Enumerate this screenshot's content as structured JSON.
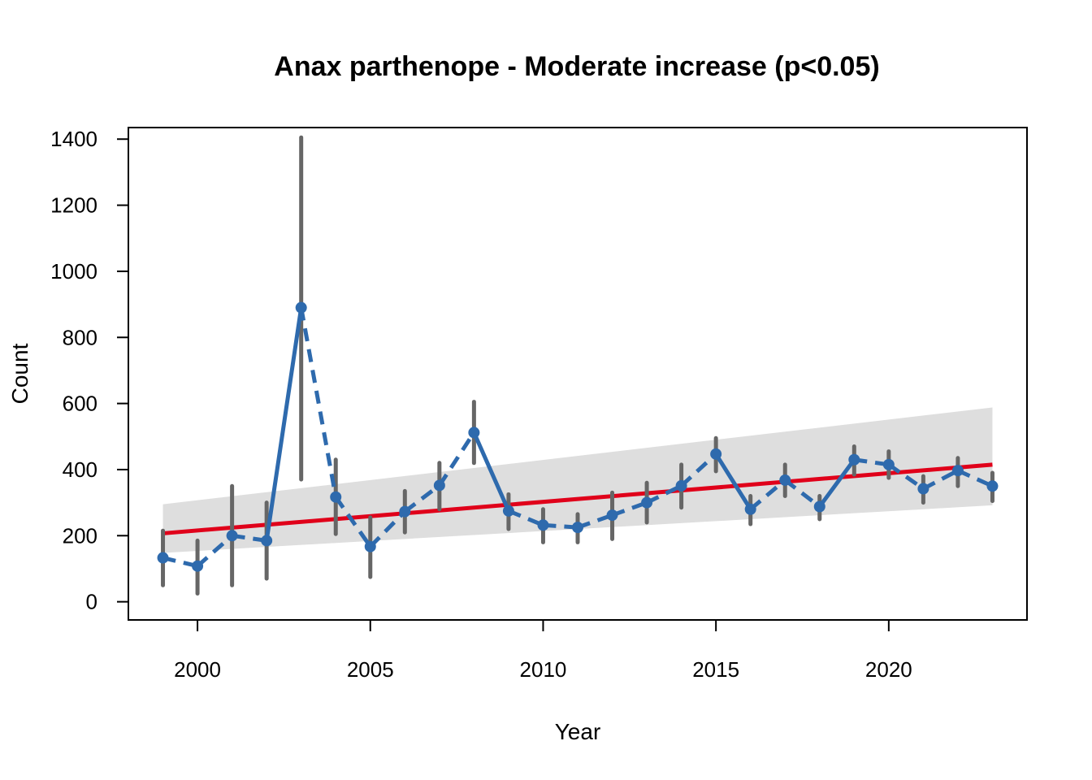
{
  "chart_data": {
    "type": "line",
    "title": "Anax parthenope - Moderate increase (p<0.05)",
    "xlabel": "Year",
    "ylabel": "Count",
    "xlim": [
      1998,
      2024
    ],
    "ylim": [
      -55,
      1435
    ],
    "x_ticks": [
      2000,
      2005,
      2010,
      2015,
      2020
    ],
    "y_ticks": [
      0,
      200,
      400,
      600,
      800,
      1000,
      1200,
      1400
    ],
    "grid": false,
    "legend": "none",
    "colors": {
      "observed": "#2e6aad",
      "error_bars": "#666666",
      "trend": "#e0001a",
      "confidence_band": "#dedede"
    },
    "series": [
      {
        "x": [
          1999,
          2000,
          2001,
          2002,
          2003,
          2004,
          2005,
          2006,
          2007,
          2008,
          2009,
          2010,
          2011,
          2012,
          2013,
          2014,
          2015,
          2016,
          2017,
          2018,
          2019,
          2020,
          2021,
          2022,
          2023
        ],
        "values": [
          133,
          108,
          200,
          185,
          890,
          317,
          167,
          273,
          352,
          512,
          275,
          232,
          225,
          262,
          300,
          351,
          447,
          280,
          368,
          288,
          430,
          415,
          342,
          397,
          350
        ],
        "lower": [
          50,
          25,
          50,
          70,
          370,
          205,
          75,
          210,
          280,
          420,
          220,
          180,
          180,
          190,
          240,
          285,
          395,
          235,
          320,
          250,
          385,
          375,
          300,
          350,
          305
        ],
        "upper": [
          215,
          185,
          350,
          300,
          1405,
          430,
          255,
          335,
          420,
          605,
          325,
          280,
          265,
          330,
          360,
          415,
          495,
          320,
          415,
          320,
          470,
          455,
          380,
          435,
          390
        ]
      }
    ],
    "trend": {
      "x": [
        1999,
        2023
      ],
      "fit": [
        207,
        415
      ],
      "band_lower": [
        148,
        292
      ],
      "band_upper": [
        295,
        588
      ]
    }
  }
}
